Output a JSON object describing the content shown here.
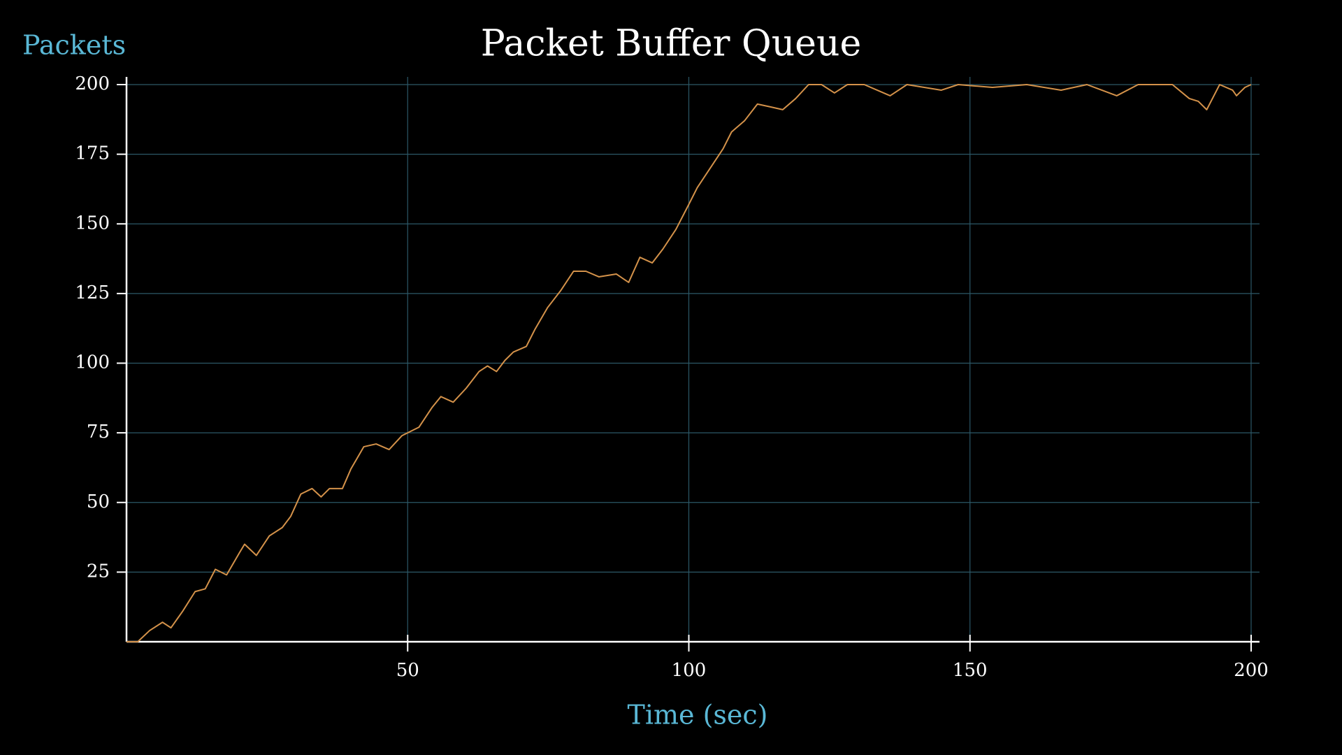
{
  "chart_data": {
    "type": "line",
    "title": "Packet Buffer Queue",
    "x_label": "Time (sec)",
    "y_label": "Packets",
    "x": [
      0,
      2,
      4.1,
      6.4,
      7.9,
      10,
      12.2,
      14,
      15.8,
      17.8,
      20.1,
      21,
      23.1,
      25.4,
      27.7,
      29.2,
      31,
      33,
      34.6,
      36.1,
      38.4,
      39.9,
      42.2,
      44.4,
      46.7,
      49,
      52,
      54.3,
      55.9,
      58.1,
      60.4,
      62.7,
      64.2,
      65.8,
      67.3,
      68.8,
      71.1,
      72.6,
      74.9,
      77.2,
      79.5,
      81.7,
      84,
      87.1,
      89.3,
      91.3,
      93.5,
      95.4,
      97.7,
      100,
      101.5,
      103.8,
      106.1,
      107.6,
      109.9,
      112.2,
      114.5,
      116.7,
      119,
      121.3,
      123.6,
      125.9,
      128.2,
      131.2,
      135.8,
      138.8,
      144.9,
      147.9,
      154,
      160.1,
      166.2,
      170.8,
      176.1,
      179.9,
      186,
      189,
      190.6,
      192.1,
      194.4,
      196.7,
      197.4,
      198.9,
      200
    ],
    "series": [
      {
        "name": "Packets",
        "color": "#d4924a",
        "values": [
          0,
          0,
          4,
          7,
          5,
          11,
          18,
          19,
          26,
          24,
          32,
          35,
          31,
          38,
          41,
          45,
          53,
          55,
          52,
          55,
          55,
          62,
          70,
          71,
          69,
          74,
          77,
          84,
          88,
          86,
          91,
          97,
          99,
          97,
          101,
          104,
          106,
          112,
          120,
          126,
          133,
          133,
          131,
          132,
          129,
          138,
          136,
          141,
          148,
          157,
          163,
          170,
          177,
          183,
          187,
          193,
          192,
          191,
          195,
          200,
          200,
          197,
          200,
          200,
          196,
          200,
          198,
          200,
          199,
          200,
          198,
          200,
          196,
          200,
          200,
          195,
          194,
          191,
          200,
          198,
          196,
          199,
          200
        ]
      }
    ],
    "xlim": [
      0,
      200
    ],
    "ylim": [
      0,
      200
    ],
    "xticks": [
      50,
      100,
      150,
      200
    ],
    "yticks": [
      25,
      50,
      75,
      100,
      125,
      150,
      175,
      200
    ],
    "grid": true
  }
}
